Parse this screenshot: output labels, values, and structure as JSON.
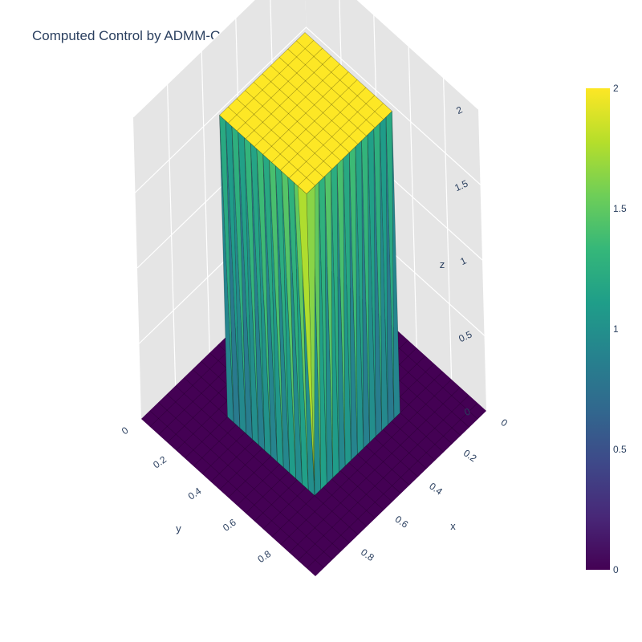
{
  "chart_data": {
    "type": "surface3d",
    "title": "Computed Control by ADMM-OtA-PINNs",
    "xlabel": "x",
    "ylabel": "y",
    "zlabel": "z",
    "xlim": [
      0,
      1
    ],
    "ylim": [
      0,
      1
    ],
    "zlim": [
      0,
      2
    ],
    "x_ticks": [
      "0",
      "0.2",
      "0.4",
      "0.6",
      "0.8"
    ],
    "y_ticks": [
      "0",
      "0.2",
      "0.4",
      "0.6",
      "0.8"
    ],
    "z_ticks": [
      "0",
      "0.5",
      "1",
      "1.5",
      "2"
    ],
    "surface": {
      "shape": "raised square plateau on a flat base",
      "plateau_region": {
        "x": [
          0.25,
          0.75
        ],
        "y": [
          0.25,
          0.75
        ]
      },
      "plateau_value": 2,
      "base_value": 0
    },
    "colorscale": "Viridis",
    "colorbar": {
      "range": [
        0,
        2
      ],
      "ticks": [
        "0",
        "0.5",
        "1",
        "1.5",
        "2"
      ],
      "placement": "right"
    },
    "grid": true,
    "colors": {
      "low": "#440154",
      "mid": "#21918c",
      "high": "#fde725",
      "scene_wall": "#e5e5e5",
      "grid_line": "#ffffff",
      "text": "#2a3f5f"
    }
  }
}
